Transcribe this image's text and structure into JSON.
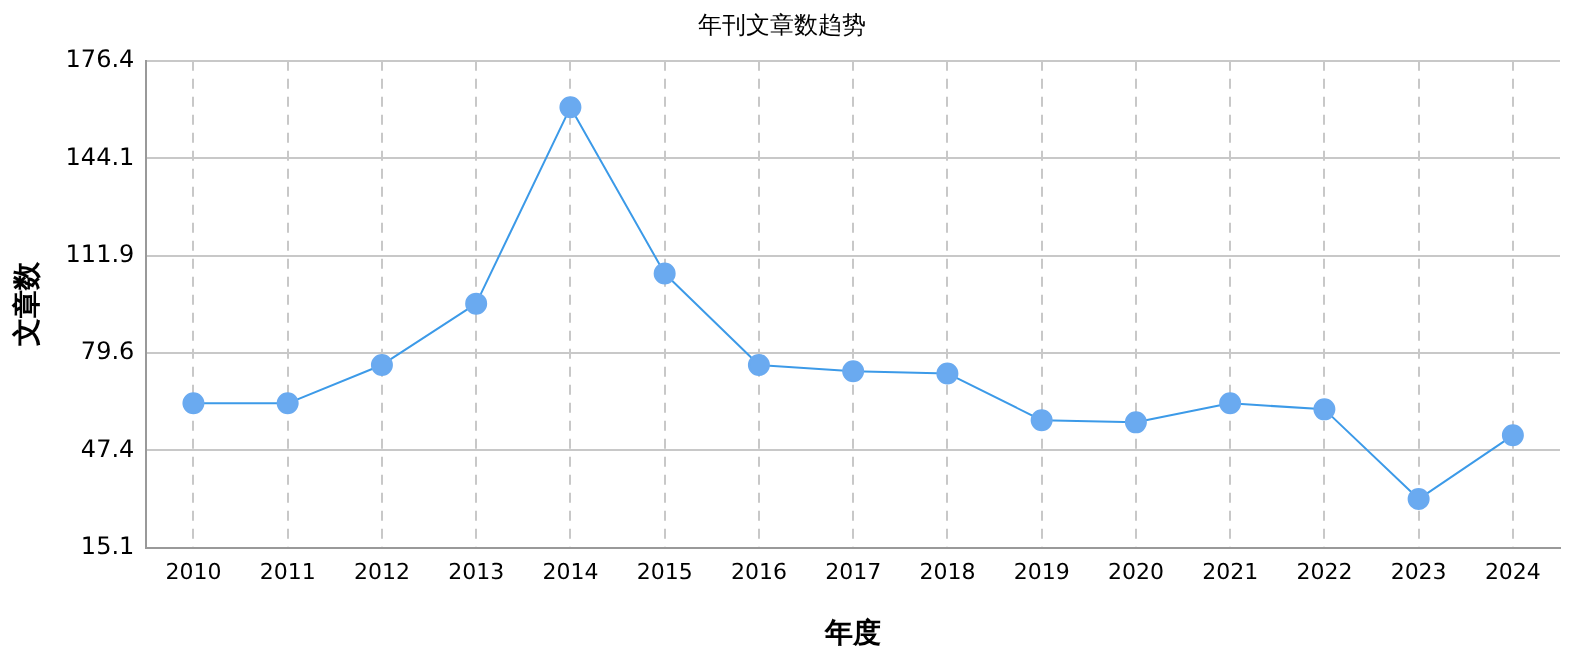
{
  "chart_data": {
    "type": "line",
    "title": "年刊文章数趋势",
    "xlabel": "年度",
    "ylabel": "文章数",
    "categories": [
      "2010",
      "2011",
      "2012",
      "2013",
      "2014",
      "2015",
      "2016",
      "2017",
      "2018",
      "2019",
      "2020",
      "2021",
      "2022",
      "2023",
      "2024"
    ],
    "series": [
      {
        "color": "#3c9ae8",
        "values": [
          63,
          63,
          75.7,
          96,
          161,
          106,
          75.7,
          73.6,
          72.9,
          57.4,
          56.7,
          63,
          61,
          31.3,
          52.4
        ]
      }
    ],
    "ylim": [
      15.1,
      176.4
    ],
    "yticks": [
      15.1,
      47.4,
      79.6,
      111.9,
      144.1,
      176.4
    ],
    "grid": true,
    "legend": false,
    "marker": "circle",
    "line_style": "solid"
  }
}
